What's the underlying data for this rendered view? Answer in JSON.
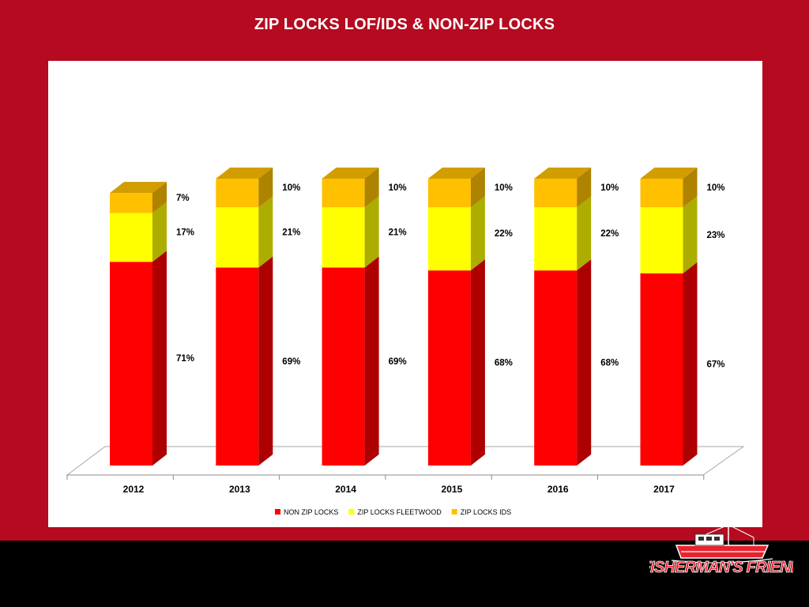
{
  "slide": {
    "title": "ZIP LOCKS LOF/IDS & NON-ZIP LOCKS"
  },
  "colors": {
    "background": "#b50a1f",
    "footer": "#000000",
    "non_zip_locks": "#ff0000",
    "zip_locks_fleetwood": "#ffff00",
    "zip_locks_ids": "#ffc000"
  },
  "chart_data": {
    "type": "bar",
    "stacked": true,
    "three_d": true,
    "categories": [
      "2012",
      "2013",
      "2014",
      "2015",
      "2016",
      "2017"
    ],
    "series": [
      {
        "name": "NON ZIP LOCKS",
        "values": [
          71,
          69,
          69,
          68,
          68,
          67
        ],
        "labels": [
          "71%",
          "69%",
          "69%",
          "68%",
          "68%",
          "67%"
        ],
        "color": "#ff0000"
      },
      {
        "name": "ZIP LOCKS FLEETWOOD",
        "values": [
          17,
          21,
          21,
          22,
          22,
          23
        ],
        "labels": [
          "17%",
          "21%",
          "21%",
          "22%",
          "22%",
          "23%"
        ],
        "color": "#ffff00"
      },
      {
        "name": "ZIP LOCKS IDS",
        "values": [
          7,
          10,
          10,
          10,
          10,
          10
        ],
        "labels": [
          "7%",
          "10%",
          "10%",
          "10%",
          "10%",
          "10%"
        ],
        "color": "#ffc000"
      }
    ],
    "legend_position": "bottom",
    "grid": false
  },
  "brand": {
    "name": "FISHERMAN'S FRIEND",
    "icon": "fishing-boat-icon"
  }
}
